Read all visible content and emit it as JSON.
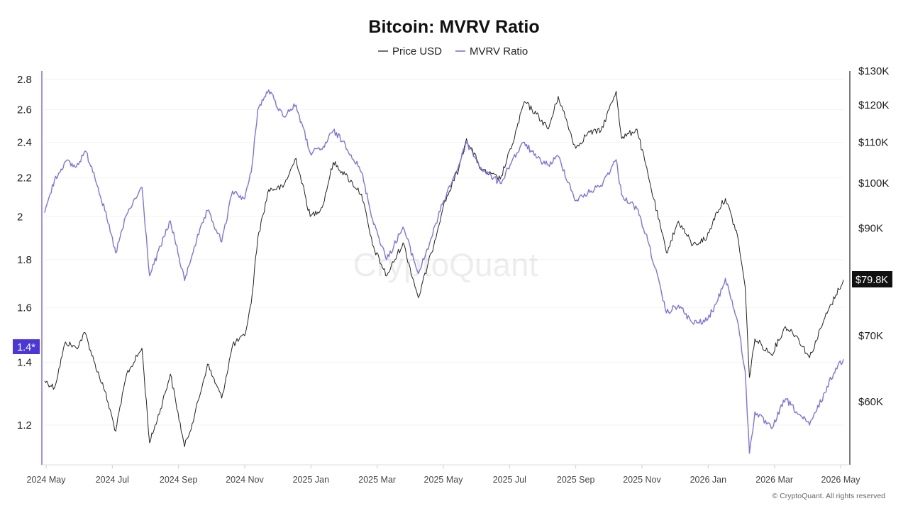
{
  "chart_data": {
    "type": "line",
    "title": "Bitcoin: MVRV Ratio",
    "legend": {
      "placement": "top-center",
      "items": [
        {
          "name": "Price USD",
          "color": "#222222"
        },
        {
          "name": "MVRV Ratio",
          "color": "#7f72e0"
        }
      ]
    },
    "x_tick_labels": [
      "2024 May",
      "2024 Jul",
      "2024 Sep",
      "2024 Nov",
      "2025 Jan",
      "2025 Mar",
      "2025 May",
      "2025 Jul",
      "2025 Sep",
      "2025 Nov",
      "2026 Jan",
      "2026 Mar",
      "2026 May"
    ],
    "left_axis": {
      "scale": "log",
      "tick_labels": [
        "2.8",
        "2.6",
        "2.4",
        "2.2",
        "2",
        "1.8",
        "1.6",
        "1.4",
        "1.2"
      ],
      "tick_values": [
        2.8,
        2.6,
        2.4,
        2.2,
        2.0,
        1.8,
        1.6,
        1.4,
        1.2
      ],
      "range": [
        1.1,
        2.85
      ]
    },
    "right_axis": {
      "scale": "log",
      "tick_labels": [
        "$130K",
        "$120K",
        "$110K",
        "$100K",
        "$90K",
        "$80K",
        "$70K",
        "$60K"
      ],
      "tick_values": [
        130000,
        120000,
        110000,
        100000,
        90000,
        80000,
        70000,
        60000
      ],
      "range": [
        52000,
        130000
      ]
    },
    "current_price_label": "$79.8K",
    "current_mvrv_label": "1.4*",
    "grid": true,
    "series": [
      {
        "name": "Price USD",
        "axis": "right",
        "color": "#222222",
        "points": [
          [
            "2024-05-01",
            63000
          ],
          [
            "2024-05-10",
            62000
          ],
          [
            "2024-05-20",
            69000
          ],
          [
            "2024-05-30",
            68000
          ],
          [
            "2024-06-07",
            70500
          ],
          [
            "2024-06-15",
            66000
          ],
          [
            "2024-06-25",
            61500
          ],
          [
            "2024-07-05",
            56000
          ],
          [
            "2024-07-15",
            64000
          ],
          [
            "2024-07-29",
            68000
          ],
          [
            "2024-08-05",
            54500
          ],
          [
            "2024-08-15",
            59000
          ],
          [
            "2024-08-24",
            64000
          ],
          [
            "2024-09-06",
            54000
          ],
          [
            "2024-09-15",
            58000
          ],
          [
            "2024-09-27",
            65500
          ],
          [
            "2024-10-10",
            60500
          ],
          [
            "2024-10-20",
            68500
          ],
          [
            "2024-10-31",
            70000
          ],
          [
            "2024-11-06",
            75500
          ],
          [
            "2024-11-12",
            88000
          ],
          [
            "2024-11-22",
            98500
          ],
          [
            "2024-12-05",
            99000
          ],
          [
            "2024-12-17",
            106000
          ],
          [
            "2024-12-30",
            92500
          ],
          [
            "2025-01-10",
            94500
          ],
          [
            "2025-01-20",
            105000
          ],
          [
            "2025-01-31",
            102000
          ],
          [
            "2025-02-15",
            97500
          ],
          [
            "2025-02-25",
            86500
          ],
          [
            "2025-03-10",
            80500
          ],
          [
            "2025-03-25",
            87000
          ],
          [
            "2025-04-08",
            76500
          ],
          [
            "2025-04-20",
            85000
          ],
          [
            "2025-05-01",
            95000
          ],
          [
            "2025-05-15",
            103500
          ],
          [
            "2025-05-22",
            111000
          ],
          [
            "2025-06-05",
            103000
          ],
          [
            "2025-06-22",
            101000
          ],
          [
            "2025-07-03",
            109500
          ],
          [
            "2025-07-14",
            121000
          ],
          [
            "2025-07-25",
            117500
          ],
          [
            "2025-08-05",
            113500
          ],
          [
            "2025-08-14",
            122500
          ],
          [
            "2025-08-30",
            108500
          ],
          [
            "2025-09-10",
            112500
          ],
          [
            "2025-09-22",
            113000
          ],
          [
            "2025-10-06",
            124000
          ],
          [
            "2025-10-11",
            111000
          ],
          [
            "2025-10-25",
            113500
          ],
          [
            "2025-11-05",
            101000
          ],
          [
            "2025-11-21",
            85000
          ],
          [
            "2025-12-02",
            91500
          ],
          [
            "2025-12-15",
            86500
          ],
          [
            "2025-12-28",
            88000
          ],
          [
            "2026-01-06",
            93500
          ],
          [
            "2026-01-14",
            96500
          ],
          [
            "2026-01-25",
            88500
          ],
          [
            "2026-02-01",
            78500
          ],
          [
            "2026-02-05",
            63500
          ],
          [
            "2026-02-10",
            69500
          ],
          [
            "2026-02-25",
            67000
          ],
          [
            "2026-03-10",
            71500
          ],
          [
            "2026-03-20",
            70000
          ],
          [
            "2026-04-01",
            66500
          ],
          [
            "2026-04-15",
            73000
          ],
          [
            "2026-04-25",
            77000
          ],
          [
            "2026-05-02",
            79800
          ]
        ]
      },
      {
        "name": "MVRV Ratio",
        "axis": "left",
        "color": "#7f72e0",
        "points": [
          [
            "2024-05-01",
            2.02
          ],
          [
            "2024-05-10",
            2.19
          ],
          [
            "2024-05-20",
            2.29
          ],
          [
            "2024-05-30",
            2.26
          ],
          [
            "2024-06-07",
            2.35
          ],
          [
            "2024-06-15",
            2.23
          ],
          [
            "2024-06-25",
            2.03
          ],
          [
            "2024-07-05",
            1.83
          ],
          [
            "2024-07-15",
            2.01
          ],
          [
            "2024-07-29",
            2.15
          ],
          [
            "2024-08-05",
            1.73
          ],
          [
            "2024-08-15",
            1.86
          ],
          [
            "2024-08-24",
            1.98
          ],
          [
            "2024-09-06",
            1.71
          ],
          [
            "2024-09-15",
            1.86
          ],
          [
            "2024-09-27",
            2.03
          ],
          [
            "2024-10-10",
            1.88
          ],
          [
            "2024-10-20",
            2.13
          ],
          [
            "2024-10-31",
            2.09
          ],
          [
            "2024-11-06",
            2.23
          ],
          [
            "2024-11-12",
            2.6
          ],
          [
            "2024-11-22",
            2.73
          ],
          [
            "2024-12-05",
            2.56
          ],
          [
            "2024-12-17",
            2.63
          ],
          [
            "2024-12-30",
            2.34
          ],
          [
            "2025-01-10",
            2.36
          ],
          [
            "2025-01-20",
            2.47
          ],
          [
            "2025-01-31",
            2.39
          ],
          [
            "2025-02-15",
            2.23
          ],
          [
            "2025-02-25",
            1.99
          ],
          [
            "2025-03-10",
            1.8
          ],
          [
            "2025-03-25",
            1.95
          ],
          [
            "2025-04-08",
            1.74
          ],
          [
            "2025-04-20",
            1.9
          ],
          [
            "2025-05-01",
            2.08
          ],
          [
            "2025-05-15",
            2.27
          ],
          [
            "2025-05-22",
            2.4
          ],
          [
            "2025-06-05",
            2.25
          ],
          [
            "2025-06-22",
            2.17
          ],
          [
            "2025-07-03",
            2.3
          ],
          [
            "2025-07-14",
            2.4
          ],
          [
            "2025-07-25",
            2.31
          ],
          [
            "2025-08-05",
            2.27
          ],
          [
            "2025-08-14",
            2.32
          ],
          [
            "2025-08-30",
            2.08
          ],
          [
            "2025-09-10",
            2.12
          ],
          [
            "2025-09-22",
            2.16
          ],
          [
            "2025-10-06",
            2.3
          ],
          [
            "2025-10-11",
            2.11
          ],
          [
            "2025-10-25",
            2.04
          ],
          [
            "2025-11-05",
            1.87
          ],
          [
            "2025-11-21",
            1.58
          ],
          [
            "2025-12-02",
            1.61
          ],
          [
            "2025-12-15",
            1.54
          ],
          [
            "2025-12-28",
            1.55
          ],
          [
            "2026-01-06",
            1.62
          ],
          [
            "2026-01-14",
            1.72
          ],
          [
            "2026-01-25",
            1.55
          ],
          [
            "2026-02-01",
            1.37
          ],
          [
            "2026-02-05",
            1.12
          ],
          [
            "2026-02-10",
            1.24
          ],
          [
            "2026-02-25",
            1.19
          ],
          [
            "2026-03-10",
            1.28
          ],
          [
            "2026-03-20",
            1.24
          ],
          [
            "2026-04-01",
            1.2
          ],
          [
            "2026-04-15",
            1.3
          ],
          [
            "2026-04-25",
            1.38
          ],
          [
            "2026-05-02",
            1.41
          ]
        ]
      }
    ]
  },
  "page": {
    "watermark": "CryptoQuant",
    "copyright": "© CryptoQuant. All rights reserved"
  }
}
